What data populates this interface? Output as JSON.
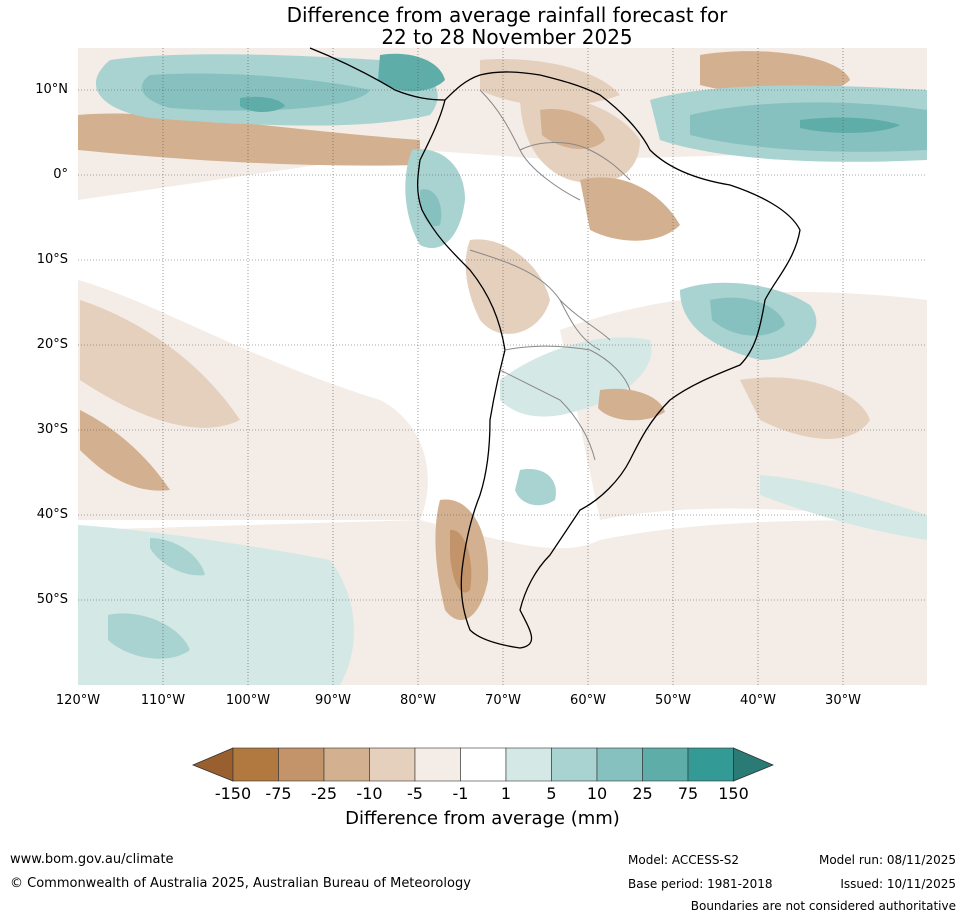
{
  "title": {
    "line1": "Difference from average rainfall forecast for",
    "line2": "22 to 28 November 2025"
  },
  "map": {
    "lat_labels": [
      "10°N",
      "0°",
      "10°S",
      "20°S",
      "30°S",
      "40°S",
      "50°S"
    ],
    "lon_labels": [
      "120°W",
      "110°W",
      "100°W",
      "90°W",
      "80°W",
      "70°W",
      "60°W",
      "50°W",
      "40°W",
      "30°W"
    ]
  },
  "colorbar": {
    "ticks": [
      "-150",
      "-75",
      "-25",
      "-10",
      "-5",
      "-1",
      "1",
      "5",
      "10",
      "25",
      "75",
      "150"
    ],
    "colors": [
      "#9a5f2e",
      "#b17940",
      "#c3946a",
      "#d3b08f",
      "#e5d0bd",
      "#f4ece6",
      "#ffffff",
      "#d4e8e6",
      "#a9d3d1",
      "#86c1bf",
      "#5eada9",
      "#349a95",
      "#2a7a76"
    ],
    "label": "Difference from average (mm)"
  },
  "footer": {
    "url": "www.bom.gov.au/climate",
    "copyright": "© Commonwealth of Australia 2025, Australian Bureau of Meteorology",
    "model": "Model: ACCESS-S2",
    "base_period": "Base period: 1981-2018",
    "model_run": "Model run: 08/11/2025",
    "issued": "Issued: 10/11/2025",
    "disclaimer": "Boundaries are not considered authoritative"
  }
}
